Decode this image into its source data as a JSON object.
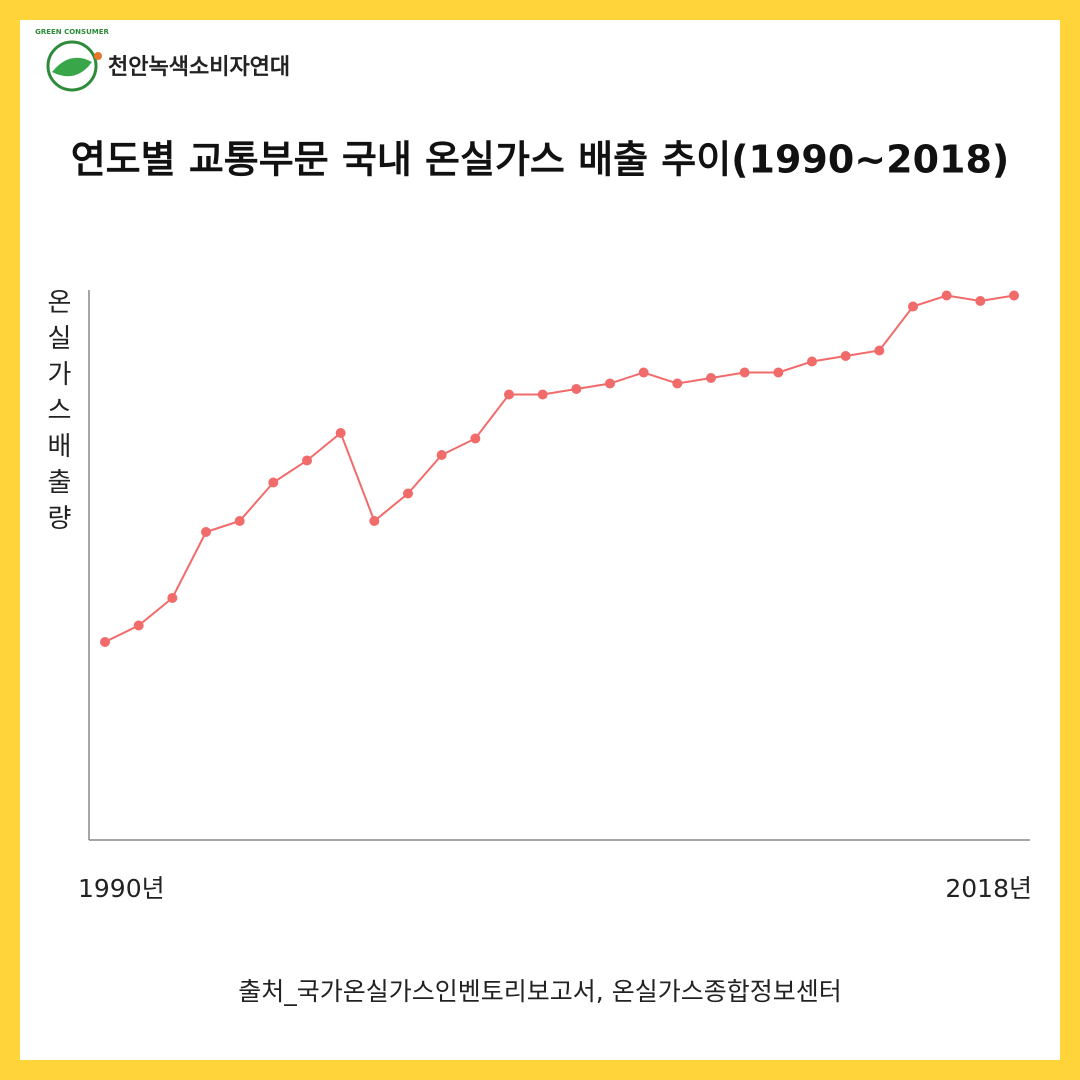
{
  "header": {
    "org_name": "천안녹색소비자연대",
    "logo_text": "GREEN CONSUMER"
  },
  "chart_data": {
    "type": "line",
    "title": "연도별 교통부문 국내 온실가스 배출 추이(1990~2018)",
    "y_label": "온실가스배출량",
    "categories": [
      "1990년",
      null,
      null,
      null,
      null,
      null,
      null,
      null,
      null,
      null,
      null,
      null,
      null,
      null,
      null,
      null,
      null,
      null,
      null,
      null,
      null,
      null,
      null,
      null,
      null,
      null,
      null,
      "2018년"
    ],
    "values": [
      36,
      39,
      44,
      56,
      58,
      65,
      69,
      74,
      58,
      63,
      70,
      73,
      81,
      81,
      82,
      83,
      85,
      83,
      84,
      85,
      85,
      87,
      88,
      89,
      97,
      99,
      98,
      99
    ],
    "color": "#f26b6b",
    "ylim": [
      0,
      100
    ],
    "source": "출처_국가온실가스인벤토리보고서, 온실가스종합정보센터"
  }
}
